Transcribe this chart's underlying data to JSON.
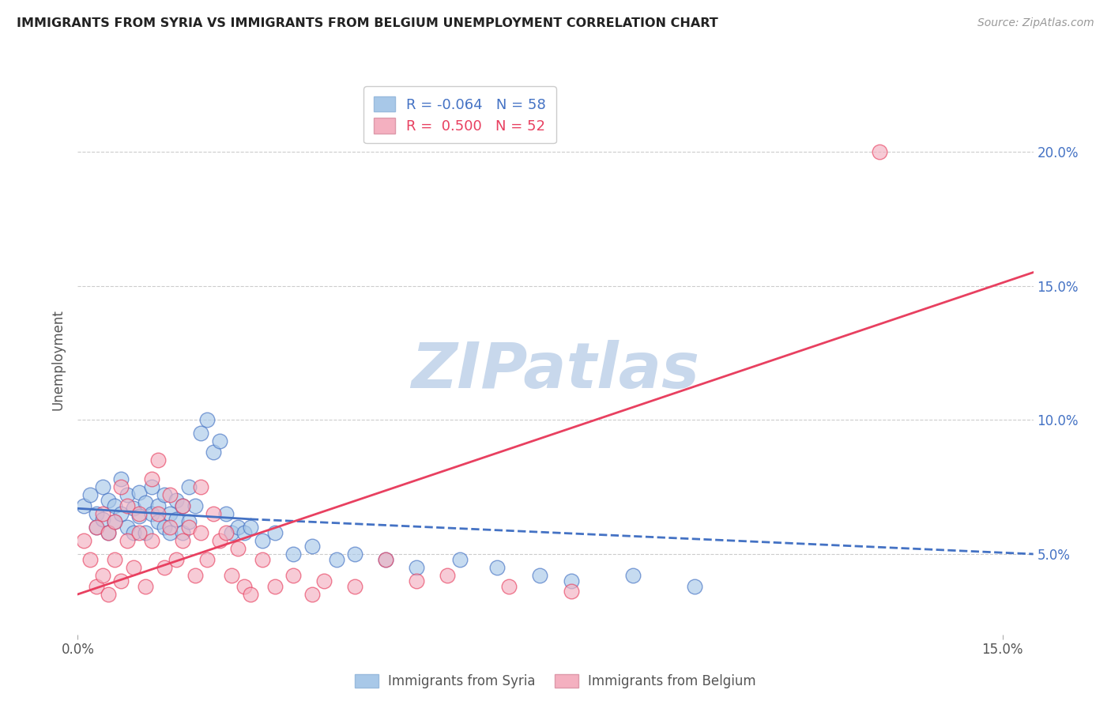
{
  "title": "IMMIGRANTS FROM SYRIA VS IMMIGRANTS FROM BELGIUM UNEMPLOYMENT CORRELATION CHART",
  "source": "Source: ZipAtlas.com",
  "ylabel": "Unemployment",
  "y_ticks": [
    0.05,
    0.1,
    0.15,
    0.2
  ],
  "y_tick_labels": [
    "5.0%",
    "10.0%",
    "15.0%",
    "20.0%"
  ],
  "xlim": [
    0.0,
    0.155
  ],
  "ylim": [
    0.02,
    0.225
  ],
  "r_syria": -0.064,
  "n_syria": 58,
  "r_belgium": 0.5,
  "n_belgium": 52,
  "color_syria": "#A8C8E8",
  "color_belgium": "#F4B0C0",
  "line_color_syria": "#4472C4",
  "line_color_belgium": "#E84060",
  "watermark": "ZIPatlas",
  "watermark_color": "#C8D8EC",
  "syria_x": [
    0.001,
    0.002,
    0.003,
    0.003,
    0.004,
    0.004,
    0.005,
    0.005,
    0.006,
    0.006,
    0.007,
    0.007,
    0.008,
    0.008,
    0.009,
    0.009,
    0.01,
    0.01,
    0.011,
    0.011,
    0.012,
    0.012,
    0.013,
    0.013,
    0.014,
    0.014,
    0.015,
    0.015,
    0.016,
    0.016,
    0.017,
    0.017,
    0.018,
    0.018,
    0.019,
    0.02,
    0.021,
    0.022,
    0.023,
    0.024,
    0.025,
    0.026,
    0.027,
    0.028,
    0.03,
    0.032,
    0.035,
    0.038,
    0.042,
    0.045,
    0.05,
    0.055,
    0.062,
    0.068,
    0.075,
    0.08,
    0.09,
    0.1
  ],
  "syria_y": [
    0.068,
    0.072,
    0.065,
    0.06,
    0.075,
    0.063,
    0.07,
    0.058,
    0.068,
    0.062,
    0.065,
    0.078,
    0.06,
    0.072,
    0.067,
    0.058,
    0.073,
    0.064,
    0.069,
    0.058,
    0.065,
    0.075,
    0.062,
    0.068,
    0.06,
    0.072,
    0.065,
    0.058,
    0.07,
    0.063,
    0.068,
    0.058,
    0.075,
    0.062,
    0.068,
    0.095,
    0.1,
    0.088,
    0.092,
    0.065,
    0.058,
    0.06,
    0.058,
    0.06,
    0.055,
    0.058,
    0.05,
    0.053,
    0.048,
    0.05,
    0.048,
    0.045,
    0.048,
    0.045,
    0.042,
    0.04,
    0.042,
    0.038
  ],
  "belgium_x": [
    0.001,
    0.002,
    0.003,
    0.003,
    0.004,
    0.004,
    0.005,
    0.005,
    0.006,
    0.006,
    0.007,
    0.007,
    0.008,
    0.008,
    0.009,
    0.01,
    0.01,
    0.011,
    0.012,
    0.012,
    0.013,
    0.013,
    0.014,
    0.015,
    0.015,
    0.016,
    0.017,
    0.017,
    0.018,
    0.019,
    0.02,
    0.02,
    0.021,
    0.022,
    0.023,
    0.024,
    0.025,
    0.026,
    0.027,
    0.028,
    0.03,
    0.032,
    0.035,
    0.038,
    0.04,
    0.045,
    0.05,
    0.055,
    0.06,
    0.07,
    0.08,
    0.13
  ],
  "belgium_y": [
    0.055,
    0.048,
    0.06,
    0.038,
    0.065,
    0.042,
    0.058,
    0.035,
    0.062,
    0.048,
    0.075,
    0.04,
    0.068,
    0.055,
    0.045,
    0.065,
    0.058,
    0.038,
    0.078,
    0.055,
    0.065,
    0.085,
    0.045,
    0.06,
    0.072,
    0.048,
    0.068,
    0.055,
    0.06,
    0.042,
    0.058,
    0.075,
    0.048,
    0.065,
    0.055,
    0.058,
    0.042,
    0.052,
    0.038,
    0.035,
    0.048,
    0.038,
    0.042,
    0.035,
    0.04,
    0.038,
    0.048,
    0.04,
    0.042,
    0.038,
    0.036,
    0.2
  ],
  "syria_line_x0": 0.0,
  "syria_line_x1": 0.028,
  "syria_line_xdash0": 0.028,
  "syria_line_xdash1": 0.155,
  "syria_line_y0": 0.067,
  "syria_line_y1": 0.063,
  "syria_line_ydash0": 0.063,
  "syria_line_ydash1": 0.05,
  "belgium_line_x0": 0.0,
  "belgium_line_x1": 0.155,
  "belgium_line_y0": 0.035,
  "belgium_line_y1": 0.155
}
